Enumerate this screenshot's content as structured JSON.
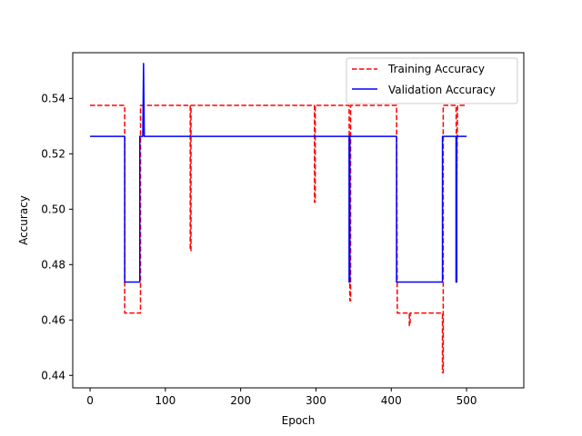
{
  "chart_data": {
    "type": "line",
    "title": "",
    "xlabel": "Epoch",
    "ylabel": "Accuracy",
    "xlim": [
      -23,
      576
    ],
    "ylim": [
      0.4355,
      0.5565
    ],
    "xticks": [
      0,
      100,
      200,
      300,
      400,
      500
    ],
    "xtick_labels": [
      "0",
      "100",
      "200",
      "300",
      "400",
      "500"
    ],
    "yticks": [
      0.44,
      0.46,
      0.48,
      0.5,
      0.52,
      0.54
    ],
    "ytick_labels": [
      "0.44",
      "0.46",
      "0.48",
      "0.50",
      "0.52",
      "0.54"
    ],
    "legend_position": "top-right",
    "series": [
      {
        "name": "Training Accuracy",
        "color": "#ff0000",
        "style": "dashed",
        "x": [
          0,
          46,
          46,
          47,
          66,
          67,
          67,
          133,
          133,
          134,
          134,
          298,
          298,
          299,
          299,
          344,
          345,
          346,
          346,
          347,
          347,
          407,
          408,
          408,
          424,
          424,
          425,
          425,
          468,
          468,
          469,
          469,
          470,
          470,
          486,
          487,
          487,
          488,
          488,
          500
        ],
        "y": [
          0.5375,
          0.5375,
          0.4625,
          0.4625,
          0.4625,
          0.4625,
          0.5375,
          0.5375,
          0.485,
          0.485,
          0.5375,
          0.5375,
          0.5025,
          0.5025,
          0.5375,
          0.5375,
          0.467,
          0.467,
          0.5375,
          0.5375,
          0.5375,
          0.5375,
          0.4625,
          0.4625,
          0.4625,
          0.458,
          0.458,
          0.4625,
          0.4625,
          0.441,
          0.441,
          0.5375,
          0.5375,
          0.5375,
          0.5375,
          0.51,
          0.51,
          0.5375,
          0.5375,
          0.5375
        ]
      },
      {
        "name": "Validation Accuracy",
        "color": "#0000ff",
        "style": "solid",
        "x": [
          0,
          45,
          46,
          46,
          65,
          66,
          66,
          70,
          71,
          71,
          72,
          72,
          343,
          344,
          344,
          345,
          345,
          406,
          407,
          407,
          467,
          468,
          468,
          485,
          486,
          486,
          487,
          487,
          500
        ],
        "y": [
          0.5263,
          0.5263,
          0.5263,
          0.4737,
          0.4737,
          0.4737,
          0.5263,
          0.5263,
          0.5526,
          0.5526,
          0.5263,
          0.5263,
          0.5263,
          0.5263,
          0.4737,
          0.4737,
          0.5263,
          0.5263,
          0.5263,
          0.4737,
          0.4737,
          0.4737,
          0.5263,
          0.5263,
          0.5263,
          0.4737,
          0.4737,
          0.5263,
          0.5263
        ]
      }
    ]
  }
}
